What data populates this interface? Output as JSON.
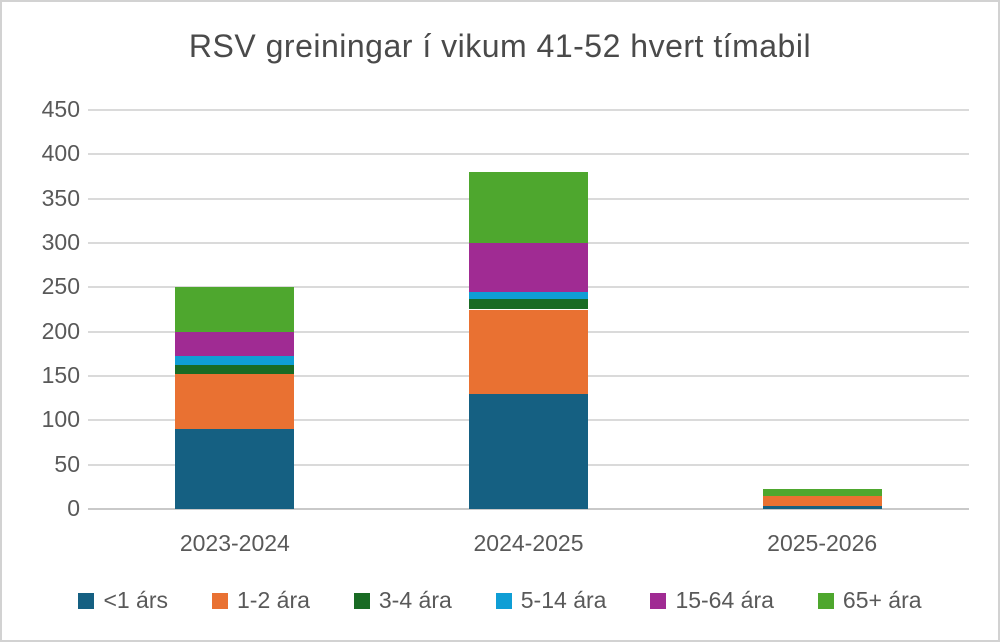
{
  "chart_data": {
    "type": "bar",
    "stacked": true,
    "title": "RSV greiningar í vikum 41-52 hvert tímabil",
    "categories": [
      "2023-2024",
      "2024-2025",
      "2025-2026"
    ],
    "series": [
      {
        "name": "<1 árs",
        "color": "#156082",
        "values": [
          90,
          130,
          3
        ]
      },
      {
        "name": "1-2 ára",
        "color": "#E97132",
        "values": [
          62,
          95,
          12
        ]
      },
      {
        "name": "3-4 ára",
        "color": "#196B24",
        "values": [
          10,
          12,
          0
        ]
      },
      {
        "name": "5-14 ára",
        "color": "#0F9ED5",
        "values": [
          10,
          8,
          0
        ]
      },
      {
        "name": "15-64 ára",
        "color": "#A02B93",
        "values": [
          28,
          55,
          0
        ]
      },
      {
        "name": "65+ ára",
        "color": "#4EA72E",
        "values": [
          50,
          80,
          8
        ]
      }
    ],
    "totals": [
      250,
      380,
      23
    ],
    "xlabel": "",
    "ylabel": "",
    "ylim": [
      0,
      450
    ],
    "ytick_step": 50,
    "ytick_labels": [
      "0",
      "50",
      "100",
      "150",
      "200",
      "250",
      "300",
      "350",
      "400",
      "450"
    ],
    "grid": true,
    "legend_position": "bottom"
  },
  "style": {
    "grid_color": "#dadada",
    "axis_line_color": "#c9c9c9",
    "tick_text_color": "#595959",
    "title_color": "#4a4a4a",
    "background": "#ffffff"
  }
}
